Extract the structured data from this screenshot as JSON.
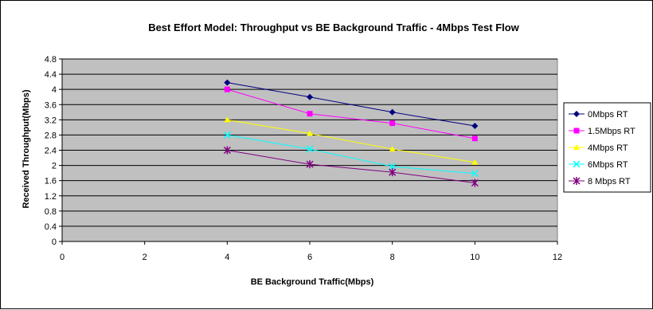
{
  "chart_data": {
    "type": "line",
    "title": "Best Effort Model: Throughput vs BE Background Traffic - 4Mbps Test Flow",
    "xlabel": "BE Background Traffic(Mbps)",
    "ylabel": "Received Throughput(Mbps)",
    "xlim": [
      0,
      12
    ],
    "ylim": [
      0,
      4.8
    ],
    "x_ticks": [
      "0",
      "2",
      "4",
      "6",
      "8",
      "10",
      "12"
    ],
    "y_ticks": [
      "0",
      "0.4",
      "0.8",
      "1.2",
      "1.6",
      "2",
      "2.4",
      "2.8",
      "3.2",
      "3.6",
      "4",
      "4.4",
      "4.8"
    ],
    "grid": true,
    "plot_background": "#c0c0c0",
    "legend_position": "right",
    "x": [
      4,
      6,
      8,
      10
    ],
    "series": [
      {
        "name": "0Mbps RT",
        "color": "#000080",
        "marker": "diamond",
        "values": [
          4.18,
          3.8,
          3.4,
          3.04
        ]
      },
      {
        "name": "1.5Mbps RT",
        "color": "#ff00ff",
        "marker": "square",
        "values": [
          4.0,
          3.36,
          3.11,
          2.71
        ]
      },
      {
        "name": "4Mbps RT",
        "color": "#ffff00",
        "marker": "triangle",
        "values": [
          3.2,
          2.84,
          2.43,
          2.08
        ]
      },
      {
        "name": "6Mbps RT",
        "color": "#00ffff",
        "marker": "x",
        "values": [
          2.8,
          2.43,
          1.97,
          1.79
        ]
      },
      {
        "name": "8 Mbps RT",
        "color": "#800080",
        "marker": "star",
        "values": [
          2.4,
          2.03,
          1.82,
          1.54
        ]
      }
    ]
  }
}
